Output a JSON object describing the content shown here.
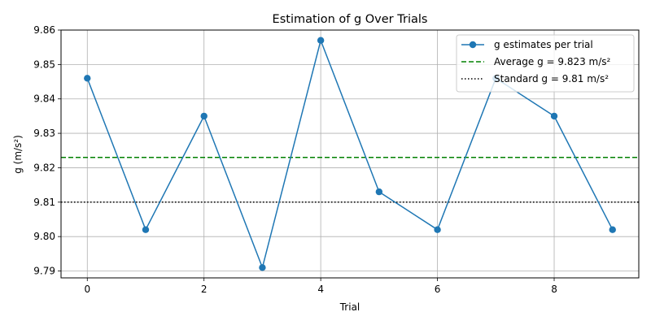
{
  "chart_data": {
    "type": "line",
    "title": "Estimation of g Over Trials",
    "xlabel": "Trial",
    "ylabel": "g (m/s²)",
    "xlim": [
      -0.45,
      9.45
    ],
    "ylim": [
      9.788,
      9.86
    ],
    "x_ticks": [
      0,
      2,
      4,
      6,
      8
    ],
    "x_tick_labels": [
      "0",
      "2",
      "4",
      "6",
      "8"
    ],
    "y_ticks": [
      9.79,
      9.8,
      9.81,
      9.82,
      9.83,
      9.84,
      9.85,
      9.86
    ],
    "y_tick_labels": [
      "9.79",
      "9.80",
      "9.81",
      "9.82",
      "9.83",
      "9.84",
      "9.85",
      "9.86"
    ],
    "grid": true,
    "legend_position": "top-right",
    "x": [
      0,
      1,
      2,
      3,
      4,
      5,
      6,
      7,
      8,
      9
    ],
    "series": [
      {
        "name": "g estimates per trial",
        "values": [
          9.846,
          9.802,
          9.835,
          9.791,
          9.857,
          9.813,
          9.802,
          9.846,
          9.835,
          9.802
        ],
        "color": "#1f77b4",
        "style": "solid",
        "marker": "circle"
      }
    ],
    "reference_lines": [
      {
        "name": "Average g = 9.823 m/s²",
        "value": 9.823,
        "color": "#008000",
        "style": "dashed"
      },
      {
        "name": "Standard g = 9.81 m/s²",
        "value": 9.81,
        "color": "#000000",
        "style": "dotted"
      }
    ]
  }
}
